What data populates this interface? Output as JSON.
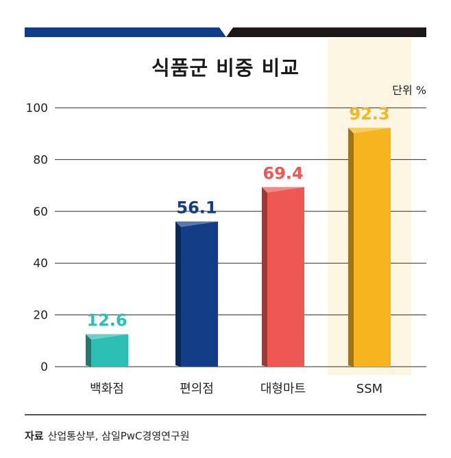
{
  "chart_data": {
    "type": "bar",
    "title": "식품군 비중 비교",
    "unit_label": "단위 %",
    "categories": [
      "백화점",
      "편의점",
      "대형마트",
      "SSM"
    ],
    "values": [
      12.6,
      56.1,
      69.4,
      92.3
    ],
    "value_labels": [
      "12.6",
      "56.1",
      "69.4",
      "92.3"
    ],
    "colors": [
      "#2bbfb3",
      "#133d86",
      "#ee5752",
      "#f6b51e"
    ],
    "highlight_category": "SSM",
    "highlight_color": "#fbf5e2",
    "yticks": [
      "0",
      "20",
      "40",
      "60",
      "80",
      "100"
    ],
    "ylim": [
      0,
      100
    ],
    "grid": true,
    "source_label": "자료",
    "source_text": "산업통상부, 삼일PwC경영연구원"
  },
  "header_bar_colors": [
    "#0f3c8a",
    "#1c1817"
  ]
}
